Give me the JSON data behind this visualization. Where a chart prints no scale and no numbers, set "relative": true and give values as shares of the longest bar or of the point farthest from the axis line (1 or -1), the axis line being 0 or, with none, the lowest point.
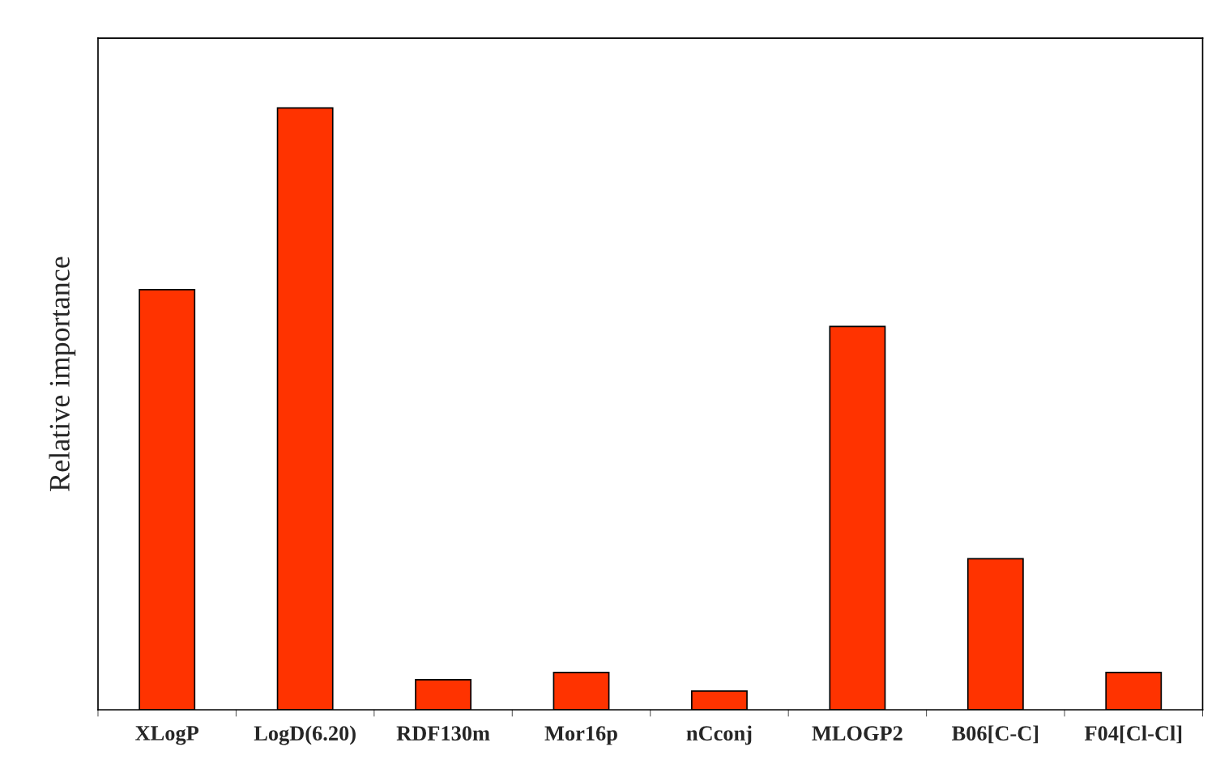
{
  "chart_data": {
    "type": "bar",
    "ylabel": "Relative importance",
    "relative": true,
    "categories": [
      "XLogP",
      "LogD(6.20)",
      "RDF130m",
      "Mor16p",
      "nCconj",
      "MLOGP2",
      "B06[C-C]",
      "F04[Cl-Cl]"
    ],
    "values": [
      0.698,
      1,
      0.05,
      0.062,
      0.031,
      0.637,
      0.251,
      0.062
    ],
    "color": "#ff3300",
    "grid": false,
    "legend": false
  }
}
